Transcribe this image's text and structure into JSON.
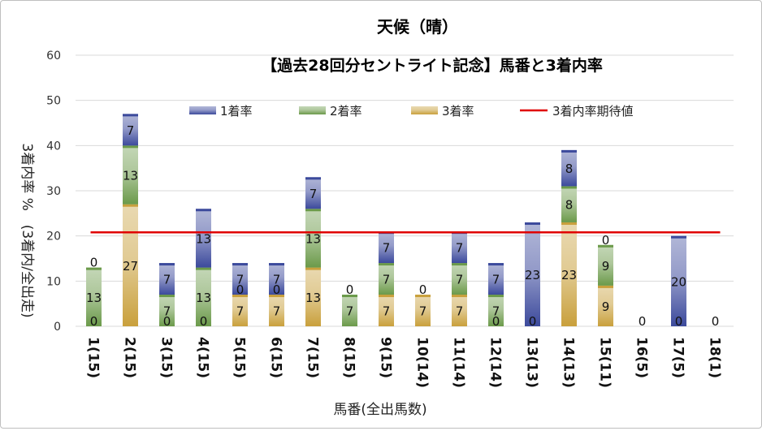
{
  "chart_data": {
    "type": "bar",
    "stacked": true,
    "title": "天候（晴）",
    "subtitle": "【過去28回分セントライト記念】馬番と3着内率",
    "xlabel": "馬番(全出馬数)",
    "ylabel": "3着内率 %　(3着内/全出走)",
    "ylim": [
      0,
      60
    ],
    "yticks": [
      0,
      10,
      20,
      30,
      40,
      50,
      60
    ],
    "grid": true,
    "legend_position": "top",
    "categories": [
      "1(15)",
      "2(15)",
      "3(15)",
      "4(15)",
      "5(15)",
      "6(15)",
      "7(15)",
      "8(15)",
      "9(15)",
      "10(14)",
      "11(14)",
      "12(14)",
      "13(13)",
      "14(13)",
      "15(11)",
      "16(5)",
      "17(5)",
      "18(1)"
    ],
    "series": [
      {
        "name": "3着率",
        "color": "#c9a03c",
        "values": [
          0,
          27,
          0,
          0,
          7,
          7,
          13,
          0,
          7,
          7,
          7,
          0,
          0,
          23,
          9,
          0,
          0,
          0
        ],
        "labels": [
          "0",
          "27",
          "0",
          "0",
          "7",
          "7",
          "13",
          "",
          "7",
          "7",
          "7",
          "0",
          "0",
          "23",
          "9",
          "",
          "0",
          ""
        ]
      },
      {
        "name": "2着率",
        "color": "#6b9a4a",
        "values": [
          13,
          13,
          7,
          13,
          0,
          0,
          13,
          7,
          7,
          0,
          7,
          7,
          0,
          8,
          9,
          0,
          0,
          0
        ],
        "labels": [
          "13",
          "13",
          "7",
          "13",
          "0",
          "0",
          "13",
          "7",
          "7",
          "",
          "7",
          "7",
          "",
          "8",
          "9",
          "",
          "",
          ""
        ]
      },
      {
        "name": "1着率",
        "color": "#3c4a9c",
        "values": [
          0,
          7,
          7,
          13,
          7,
          7,
          7,
          0,
          7,
          0,
          7,
          7,
          23,
          8,
          0,
          0,
          20,
          0
        ],
        "labels": [
          "0",
          "7",
          "7",
          "13",
          "7",
          "7",
          "7",
          "0",
          "7",
          "0",
          "7",
          "7",
          "23",
          "8",
          "0",
          "0",
          "20",
          "0"
        ]
      }
    ],
    "reference_line": {
      "name": "3着内率期待値",
      "value": 20.8,
      "color": "#e00000"
    }
  }
}
